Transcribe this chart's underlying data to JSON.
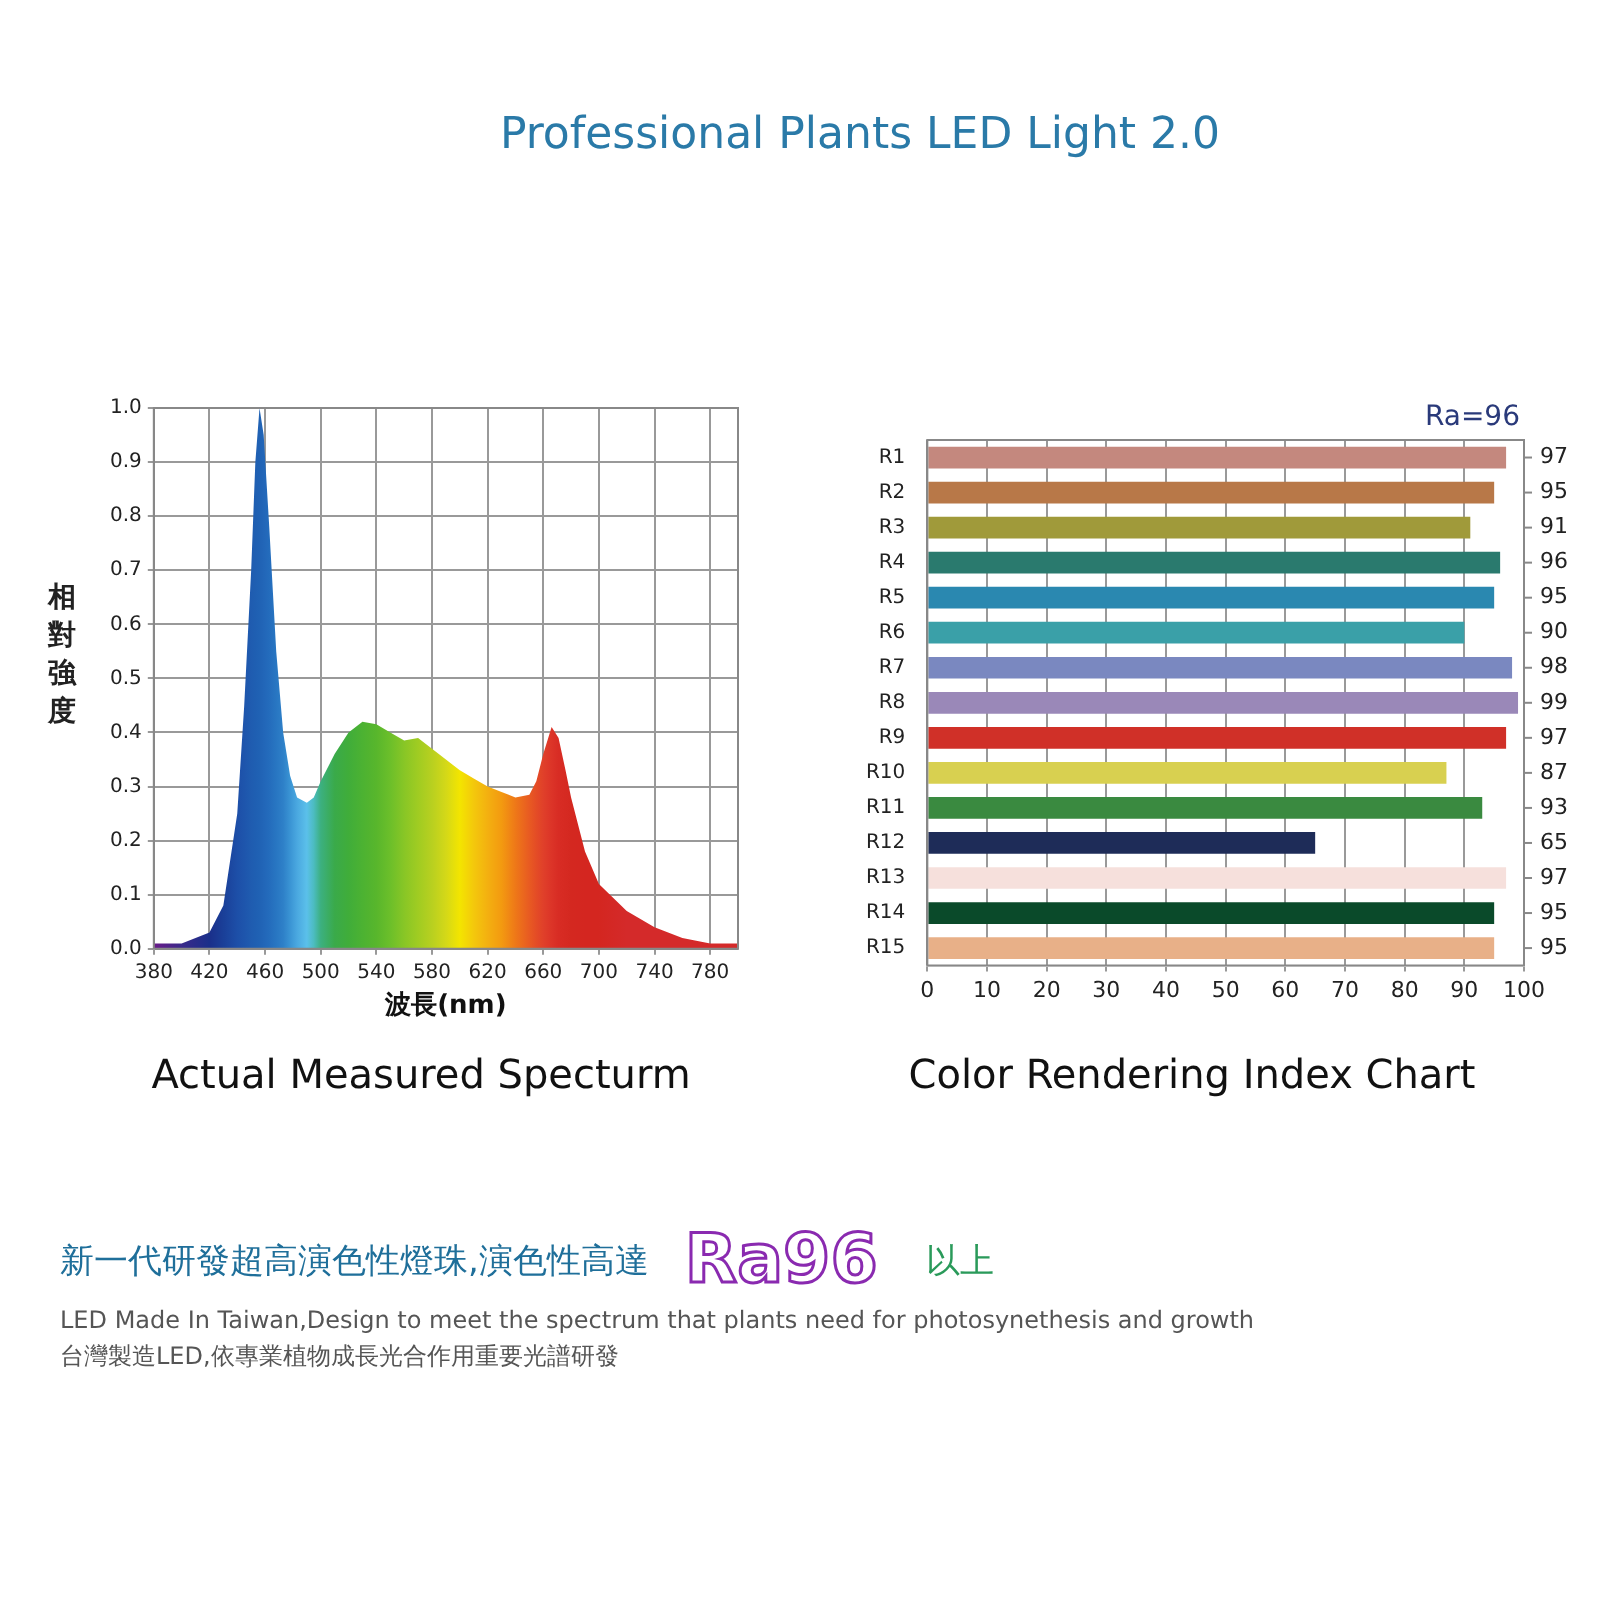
{
  "chart_data": [
    {
      "type": "other",
      "title": "Professional Plants LED Light 2.0"
    },
    {
      "type": "area",
      "title": "Actual Measured Specturm",
      "xlabel": "波長(nm)",
      "ylabel": "相對強度",
      "xlim": [
        380,
        800
      ],
      "ylim": [
        0,
        1
      ],
      "xticks": [
        380,
        420,
        460,
        500,
        540,
        580,
        620,
        660,
        700,
        740,
        780
      ],
      "yticks": [
        {
          "value": 0,
          "label": "0.0"
        },
        {
          "value": 0.1,
          "label": "0.1"
        },
        {
          "value": 0.2,
          "label": "0.2"
        },
        {
          "value": 0.3,
          "label": "0.3"
        },
        {
          "value": 0.4,
          "label": "0.4"
        },
        {
          "value": 0.5,
          "label": "0.5"
        },
        {
          "value": 0.6,
          "label": "0.6"
        },
        {
          "value": 0.7,
          "label": "0.7"
        },
        {
          "value": 0.8,
          "label": "0.8"
        },
        {
          "value": 0.9,
          "label": "0.9"
        },
        {
          "value": 1,
          "label": "1.0"
        }
      ],
      "grid": true,
      "x": [
        380,
        400,
        420,
        430,
        440,
        445,
        450,
        453,
        456,
        459,
        463,
        468,
        473,
        478,
        483,
        490,
        495,
        500,
        510,
        520,
        530,
        540,
        550,
        560,
        570,
        580,
        590,
        600,
        610,
        620,
        630,
        640,
        650,
        655,
        660,
        666,
        671,
        676,
        680,
        690,
        700,
        720,
        740,
        760,
        780,
        800
      ],
      "values": [
        0.01,
        0.01,
        0.03,
        0.08,
        0.25,
        0.45,
        0.7,
        0.9,
        1.0,
        0.95,
        0.78,
        0.55,
        0.4,
        0.32,
        0.28,
        0.27,
        0.28,
        0.31,
        0.36,
        0.4,
        0.42,
        0.415,
        0.4,
        0.385,
        0.39,
        0.37,
        0.35,
        0.33,
        0.315,
        0.3,
        0.29,
        0.28,
        0.285,
        0.31,
        0.36,
        0.41,
        0.39,
        0.33,
        0.28,
        0.18,
        0.12,
        0.07,
        0.04,
        0.02,
        0.01,
        0.01
      ],
      "colors": [
        "#6a1b8a",
        "#3a2a8a",
        "#1a2f8a",
        "#1a3f98",
        "#1d4fa8",
        "#1e55ac",
        "#1f5cb0",
        "#1f5fb2",
        "#2062b4",
        "#2266b8",
        "#246cbc",
        "#2876c2",
        "#2e80c8",
        "#3a94d4",
        "#4aa8e0",
        "#5bc0ea",
        "#4cbcc0",
        "#3cb080",
        "#3aaa4a",
        "#40ad3a",
        "#4cb232",
        "#58b62c",
        "#6cbf2a",
        "#88c626",
        "#a0cc22",
        "#b8d020",
        "#d4d818",
        "#f3e500",
        "#f3c80c",
        "#f3b010",
        "#f39a10",
        "#ee7818",
        "#e85a22",
        "#e44c26",
        "#e0402a",
        "#dc3428",
        "#d82c24",
        "#d62a22",
        "#d42820",
        "#d42620",
        "#d42620",
        "#d42a2a",
        "#d42a2a",
        "#d42a2a",
        "#d42a2a",
        "#d42a2a"
      ]
    },
    {
      "type": "bar",
      "orientation": "horizontal",
      "title": "Color Rendering Index Chart",
      "categories": [
        "R1",
        "R2",
        "R3",
        "R4",
        "R5",
        "R6",
        "R7",
        "R8",
        "R9",
        "R10",
        "R11",
        "R12",
        "R13",
        "R14",
        "R15"
      ],
      "values": [
        97,
        95,
        91,
        96,
        95,
        90,
        98,
        99,
        97,
        87,
        93,
        65,
        97,
        95,
        95
      ],
      "colors": [
        "#c4887e",
        "#b87848",
        "#a09a3a",
        "#2a7a6e",
        "#2a88b0",
        "#3aa0a8",
        "#7a88c0",
        "#9a88b8",
        "#d03028",
        "#d8d050",
        "#3a8a40",
        "#1e2c58",
        "#f6e0dc",
        "#0a4a2a",
        "#e8b088"
      ],
      "xlim": [
        0,
        100
      ],
      "xticks": [
        0,
        10,
        20,
        30,
        40,
        50,
        60,
        70,
        80,
        90,
        100
      ],
      "grid": "x",
      "data_labels": true,
      "annotations": [
        "Ra=96"
      ]
    },
    {
      "type": "other",
      "annotations": [
        "新一代研發超高演色性燈珠,演色性高達",
        "Ra96",
        "以上",
        "LED Made In Taiwan,Design to meet the spectrum that plants need for photosynethesis and growth",
        "台灣製造LED,依專業植物成長光合作用重要光譜研發"
      ]
    }
  ]
}
